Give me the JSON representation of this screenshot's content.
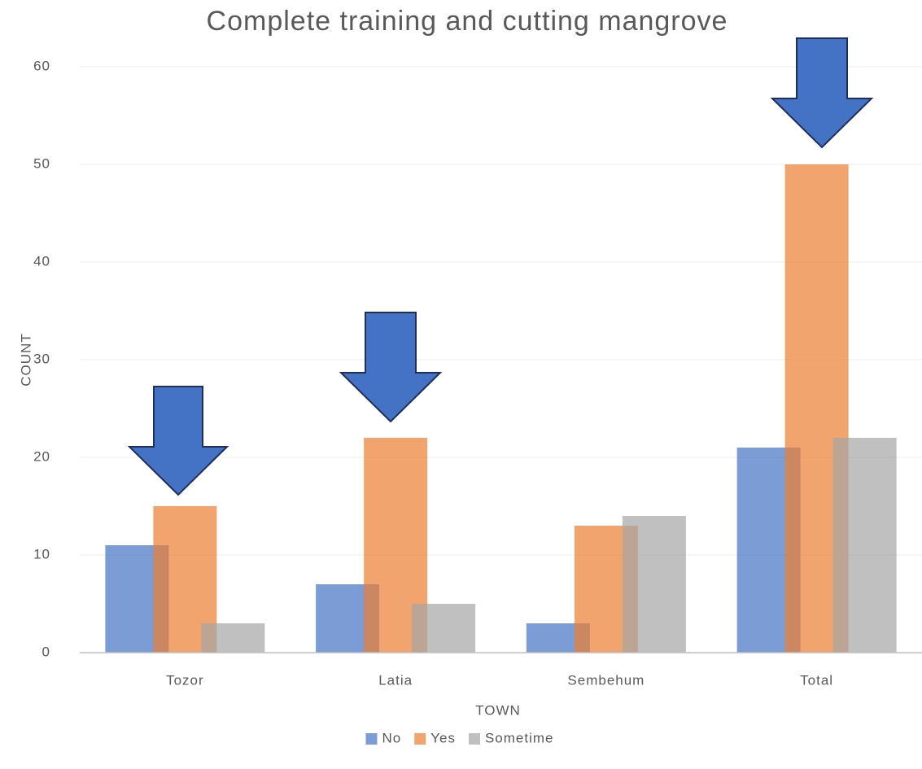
{
  "chart_data": {
    "type": "bar",
    "title": "Complete training and cutting mangrove",
    "x_label": "TOWN",
    "y_label": "COUNT",
    "categories": [
      "Tozor",
      "Latia",
      "Sembehum",
      "Total"
    ],
    "series": [
      {
        "name": "No",
        "color": "#4472c4",
        "values": [
          11,
          7,
          3,
          21
        ]
      },
      {
        "name": "Yes",
        "color": "#ed7d31",
        "values": [
          15,
          22,
          13,
          50
        ]
      },
      {
        "name": "Sometime",
        "color": "#a5a5a5",
        "values": [
          3,
          5,
          14,
          22
        ]
      }
    ],
    "ylim": [
      0,
      60
    ],
    "yticks": [
      0,
      10,
      20,
      30,
      40,
      50,
      60
    ],
    "grid": true,
    "legend": "bottom"
  }
}
